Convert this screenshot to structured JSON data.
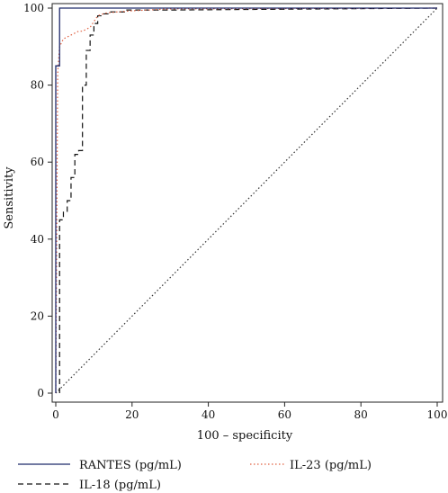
{
  "chart_data": {
    "type": "line",
    "title": "",
    "xlabel": "100 – specificity",
    "ylabel": "Sensitivity",
    "xlim": [
      0,
      100
    ],
    "ylim": [
      0,
      100
    ],
    "x_ticks": [
      "0",
      "20",
      "40",
      "60",
      "80",
      "100"
    ],
    "y_ticks": [
      "0",
      "20",
      "40",
      "60",
      "80",
      "100"
    ],
    "grid": false,
    "legend_position": "bottom",
    "series": [
      {
        "name": "RANTES (pg/mL)",
        "color": "#1f2a6b",
        "style": "solid",
        "x": [
          0,
          0,
          1,
          1,
          100
        ],
        "y": [
          0,
          85,
          85,
          100,
          100
        ]
      },
      {
        "name": "IL-23 (pg/mL)",
        "color": "#e06040",
        "style": "dotted",
        "x": [
          0,
          0.5,
          1,
          2,
          3,
          4,
          5,
          6,
          7,
          8,
          9,
          10,
          11,
          13,
          16,
          20,
          30,
          100
        ],
        "y": [
          0,
          83,
          90,
          92,
          92.5,
          93,
          93.5,
          94,
          94,
          94.5,
          95,
          96.5,
          98,
          98.7,
          99,
          99.3,
          99.8,
          100
        ]
      },
      {
        "name": "IL-18 (pg/mL)",
        "color": "#111111",
        "style": "dashed",
        "x": [
          1,
          1,
          2,
          2,
          3,
          3,
          4,
          4,
          5,
          5,
          6,
          6,
          7,
          7,
          8,
          8,
          9,
          9,
          10,
          10,
          11,
          11,
          12,
          12,
          14,
          14,
          18,
          18,
          30,
          100
        ],
        "y": [
          0,
          45,
          45,
          47,
          47,
          50,
          50,
          56,
          56,
          62,
          62,
          63,
          63,
          80,
          80,
          89,
          89,
          93,
          93,
          96,
          96,
          98,
          98,
          98.5,
          98.5,
          99,
          99,
          99.5,
          99.5,
          100
        ]
      },
      {
        "name": "",
        "color": "#333333",
        "style": "dotted",
        "x": [
          0,
          100
        ],
        "y": [
          0,
          100
        ]
      }
    ]
  }
}
